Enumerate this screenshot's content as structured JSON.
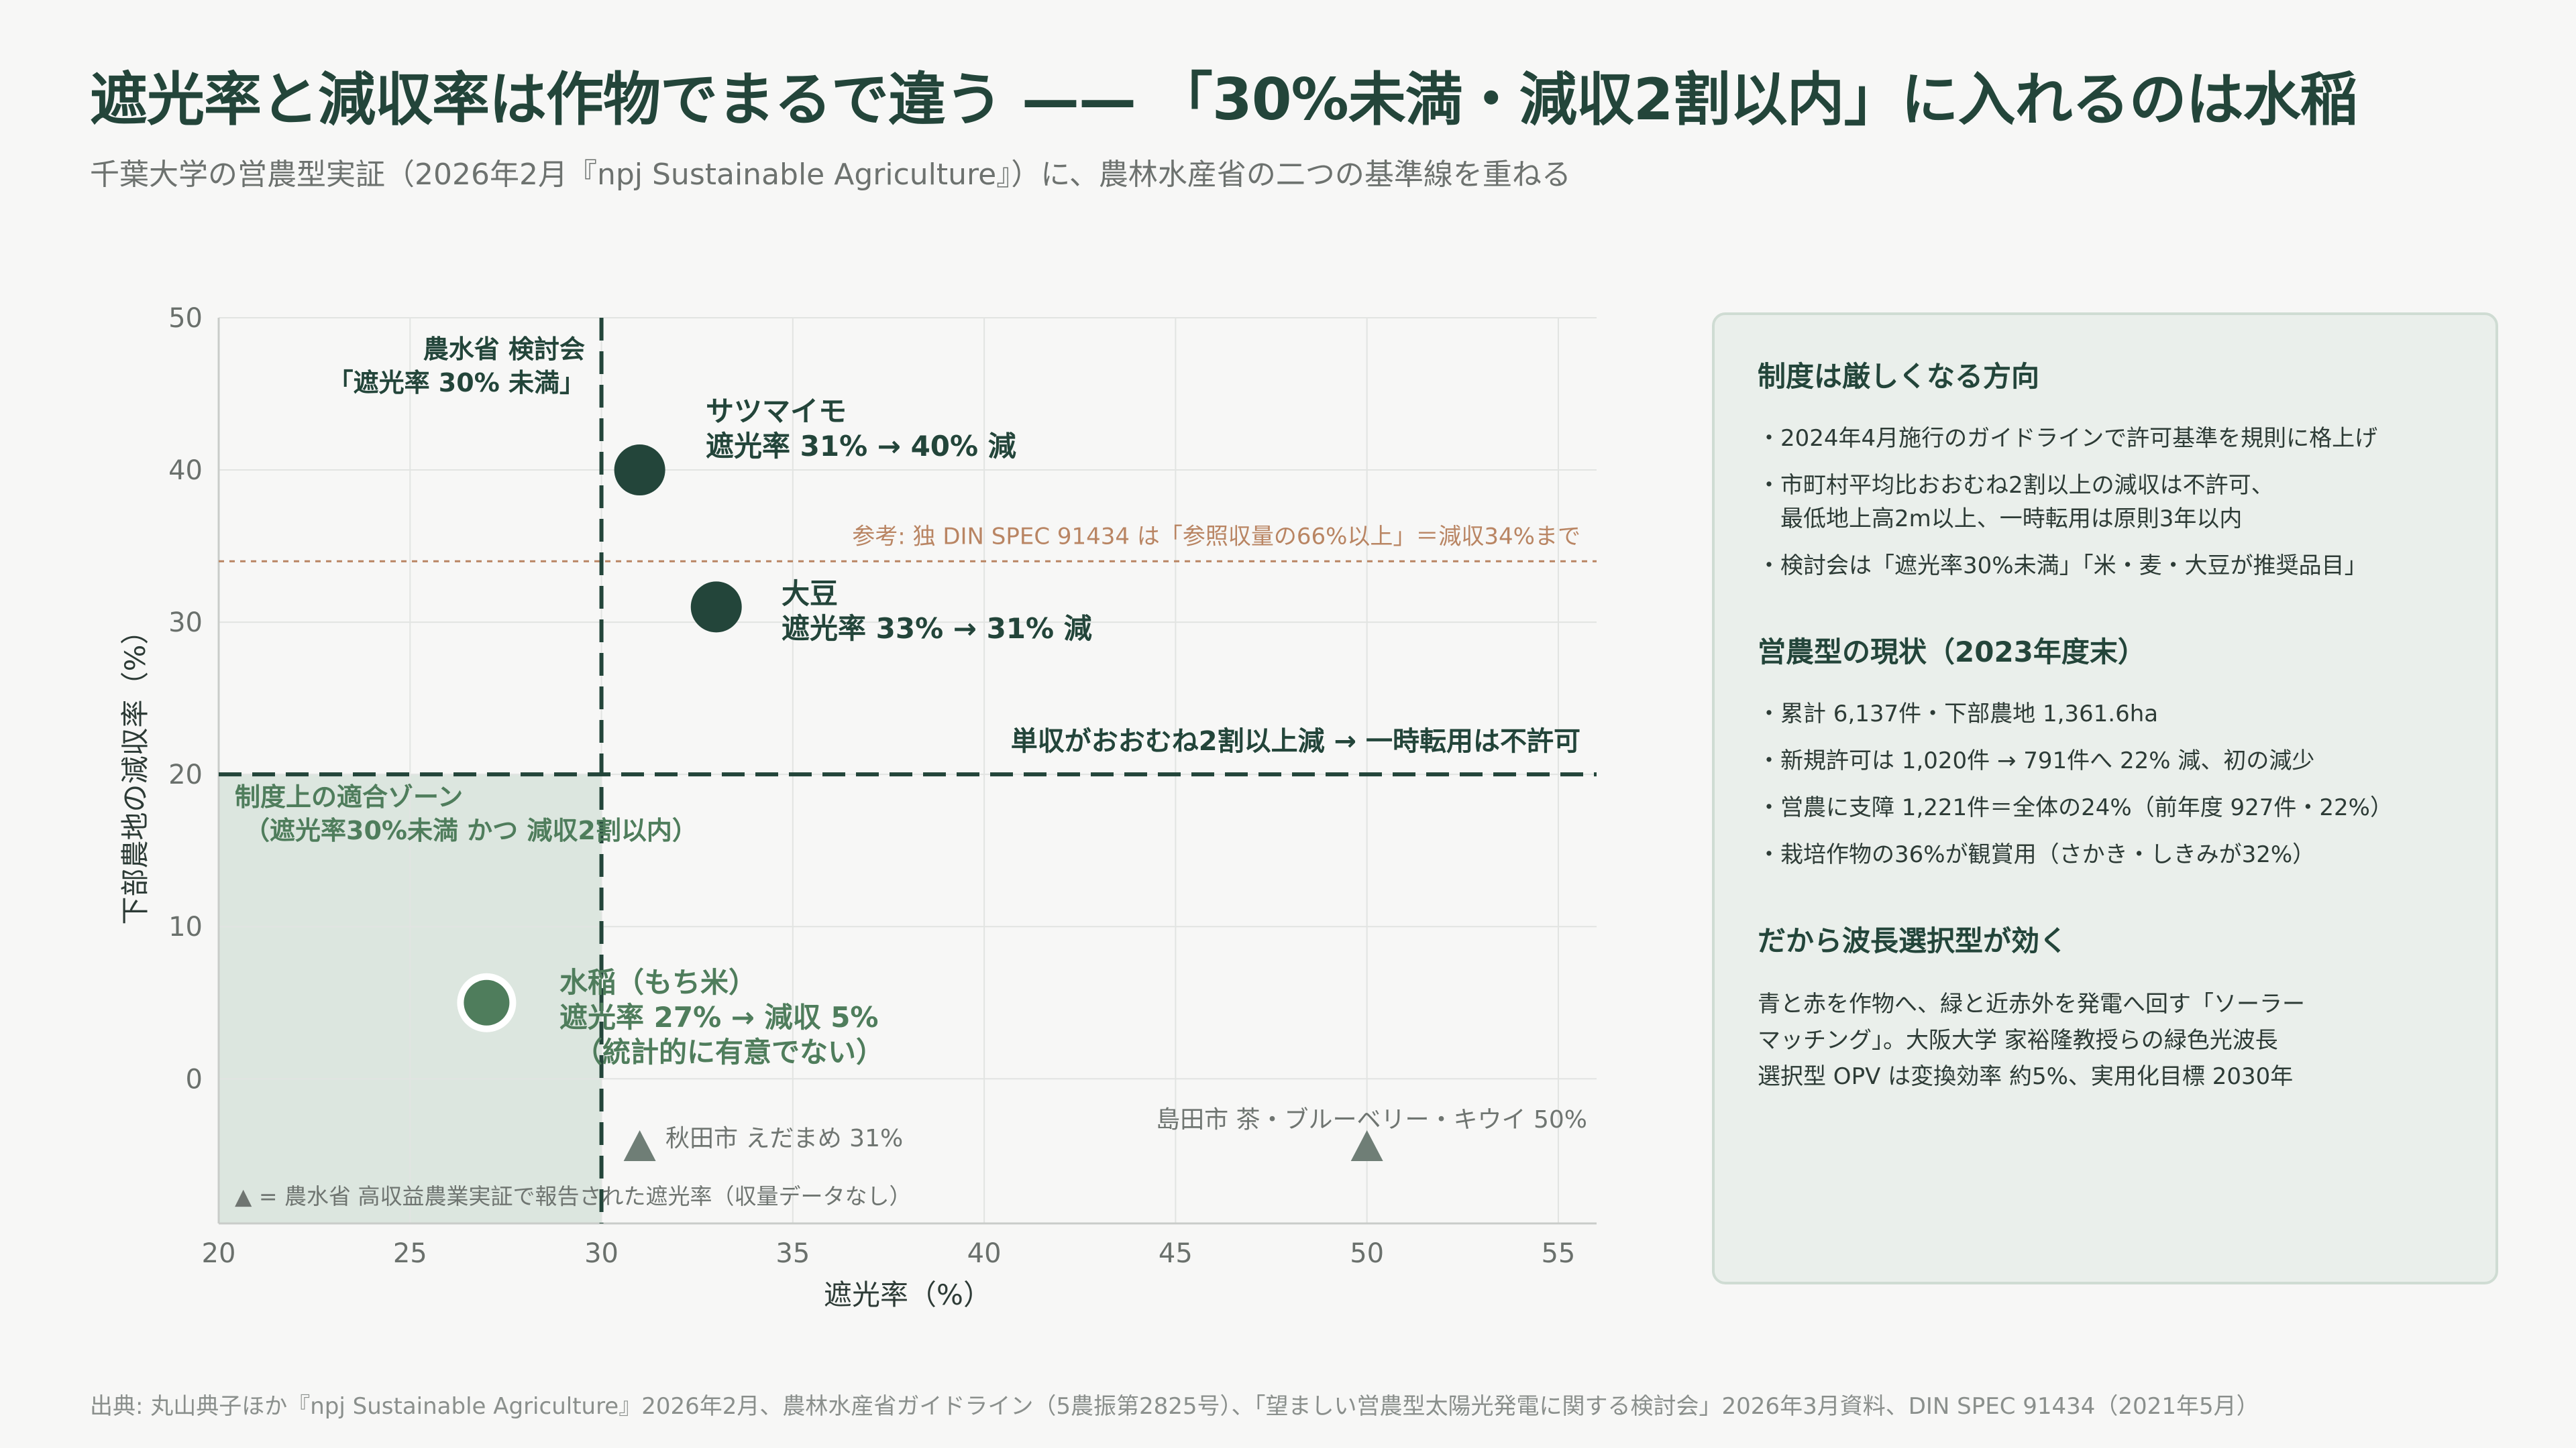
{
  "title": "遮光率と減収率は作物でまるで違う —— 「30%未満・減収2割以内」に入れるのは水稲",
  "subtitle": "千葉大学の営農型実証（2026年2月『npj Sustainable Agriculture』）に、農林水産省の二つの基準線を重ねる",
  "colors": {
    "dark_green": "#23453a",
    "mid_green": "#4f7d5c",
    "zone_fill": "#dce6df",
    "reference_line": "#b98563",
    "triangle": "#6f7e76",
    "gray_text": "#7a807d"
  },
  "chart_data": {
    "type": "scatter",
    "xlabel": "遮光率（%）",
    "ylabel": "下部農地の減収率（%）",
    "xlim": [
      20,
      56
    ],
    "ylim": [
      -9.5,
      50
    ],
    "x_ticks": [
      "20",
      "25",
      "30",
      "35",
      "40",
      "45",
      "50",
      "55"
    ],
    "y_ticks": [
      "0",
      "10",
      "20",
      "30",
      "40",
      "50"
    ],
    "grid": true,
    "points": [
      {
        "name": "サツマイモ",
        "x": 31,
        "y": 40,
        "style": "dark",
        "lines": [
          "サツマイモ",
          "遮光率 31% → 40% 減"
        ]
      },
      {
        "name": "大豆",
        "x": 33,
        "y": 31,
        "style": "dark",
        "lines": [
          "大豆",
          "遮光率 33% → 31% 減"
        ]
      },
      {
        "name": "水稲（もち米）",
        "x": 27,
        "y": 5,
        "style": "light",
        "lines": [
          "水稲（もち米）",
          "遮光率 27% → 減収 5%",
          "（統計的に有意でない）"
        ]
      }
    ],
    "triangles": [
      {
        "x": 31,
        "label": "秋田市 えだまめ 31%"
      },
      {
        "x": 50,
        "label": "島田市 茶・ブルーベリー・キウイ 50%"
      }
    ],
    "triangle_note": "▲ = 農水省 高収益農業実証で報告された遮光率（収量データなし）",
    "v_threshold": {
      "x": 30,
      "label_lines": [
        "農水省 検討会",
        "「遮光率 30% 未満」"
      ]
    },
    "h_threshold": {
      "y": 20,
      "label": "単収がおおむね2割以上減 → 一時転用は不許可"
    },
    "reference": {
      "y": 34,
      "label": "参考: 独 DIN SPEC 91434 は「参照収量の66%以上」＝減収34%まで"
    },
    "zone": {
      "x_max": 30,
      "y_max": 20,
      "label_lines": [
        "制度上の適合ゾーン",
        "（遮光率30%未満 かつ 減収2割以内）"
      ]
    }
  },
  "panel": {
    "sections": [
      {
        "heading": "制度は厳しくなる方向",
        "items": [
          "・2024年4月施行のガイドラインで許可基準を規則に格上げ",
          "・市町村平均比おおむね2割以上の減収は不許可、\n　最低地上高2m以上、一時転用は原則3年以内",
          "・検討会は「遮光率30%未満」「米・麦・大豆が推奨品目」"
        ]
      },
      {
        "heading": "営農型の現状（2023年度末）",
        "items": [
          "・累計 6,137件・下部農地 1,361.6ha",
          "・新規許可は 1,020件 → 791件へ 22% 減、初の減少",
          "・営農に支障 1,221件＝全体の24%（前年度 927件・22%）",
          "・栽培作物の36%が観賞用（さかき・しきみが32%）"
        ]
      }
    ],
    "closing_heading": "だから波長選択型が効く",
    "closing_lines": [
      "青と赤を作物へ、緑と近赤外を発電へ回す「ソーラー",
      "マッチング」。大阪大学 家裕隆教授らの緑色光波長",
      "選択型 OPV は変換効率 約5%、実用化目標 2030年"
    ]
  },
  "source": "出典: 丸山典子ほか『npj Sustainable Agriculture』2026年2月、農林水産省ガイドライン（5農振第2825号）、「望ましい営農型太陽光発電に関する検討会」2026年3月資料、DIN SPEC 91434（2021年5月）"
}
